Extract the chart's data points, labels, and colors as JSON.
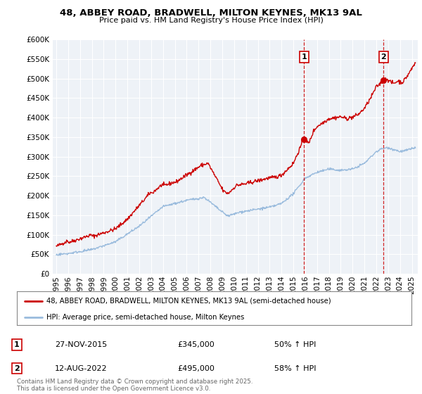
{
  "title1": "48, ABBEY ROAD, BRADWELL, MILTON KEYNES, MK13 9AL",
  "title2": "Price paid vs. HM Land Registry's House Price Index (HPI)",
  "ylim": [
    0,
    600000
  ],
  "xlim": [
    1994.7,
    2025.5
  ],
  "yticks": [
    0,
    50000,
    100000,
    150000,
    200000,
    250000,
    300000,
    350000,
    400000,
    450000,
    500000,
    550000,
    600000
  ],
  "ytick_labels": [
    "£0",
    "£50K",
    "£100K",
    "£150K",
    "£200K",
    "£250K",
    "£300K",
    "£350K",
    "£400K",
    "£450K",
    "£500K",
    "£550K",
    "£600K"
  ],
  "xticks": [
    1995,
    1996,
    1997,
    1998,
    1999,
    2000,
    2001,
    2002,
    2003,
    2004,
    2005,
    2006,
    2007,
    2008,
    2009,
    2010,
    2011,
    2012,
    2013,
    2014,
    2015,
    2016,
    2017,
    2018,
    2019,
    2020,
    2021,
    2022,
    2023,
    2024,
    2025
  ],
  "xtick_labels": [
    "1995",
    "1996",
    "1997",
    "1998",
    "1999",
    "2000",
    "2001",
    "2002",
    "2003",
    "2004",
    "2005",
    "2006",
    "2007",
    "2008",
    "2009",
    "2010",
    "2011",
    "2012",
    "2013",
    "2014",
    "2015",
    "2016",
    "2017",
    "2018",
    "2019",
    "2020",
    "2021",
    "2022",
    "2023",
    "2024",
    "2025"
  ],
  "red_color": "#cc0000",
  "blue_color": "#99bbdd",
  "vline1_x": 2015.91,
  "vline2_x": 2022.62,
  "marker1_x": 2015.91,
  "marker1_y": 345000,
  "marker2_x": 2022.62,
  "marker2_y": 495000,
  "legend_label1": "48, ABBEY ROAD, BRADWELL, MILTON KEYNES, MK13 9AL (semi-detached house)",
  "legend_label2": "HPI: Average price, semi-detached house, Milton Keynes",
  "annotation1_date": "27-NOV-2015",
  "annotation1_price": "£345,000",
  "annotation1_hpi": "50% ↑ HPI",
  "annotation2_date": "12-AUG-2022",
  "annotation2_price": "£495,000",
  "annotation2_hpi": "58% ↑ HPI",
  "footer": "Contains HM Land Registry data © Crown copyright and database right 2025.\nThis data is licensed under the Open Government Licence v3.0.",
  "bg_color": "#ffffff",
  "plot_bg_color": "#eef2f7",
  "grid_color": "#ffffff"
}
